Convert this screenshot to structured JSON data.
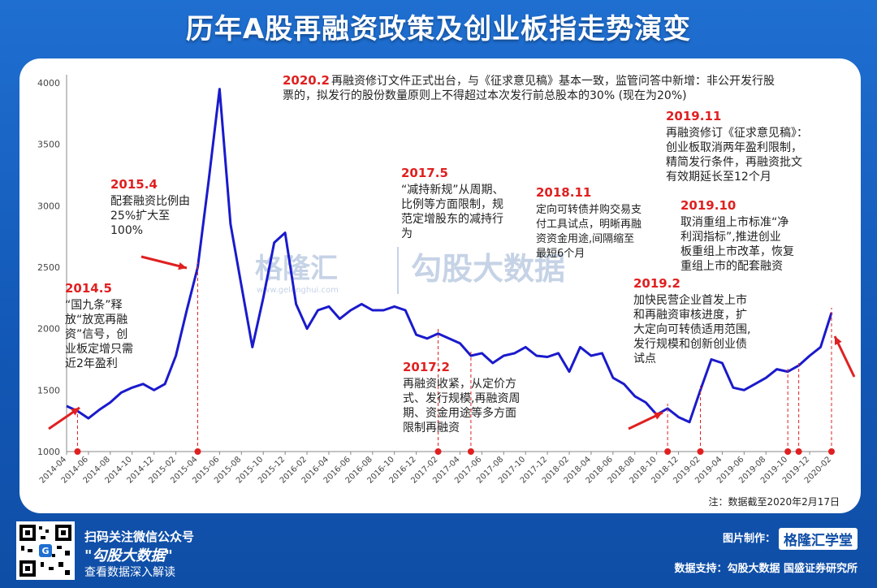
{
  "title": "历年A股再融资政策及创业板指走势演变",
  "watermark": {
    "brand": "格隆汇",
    "site": "www.gelonghui.com",
    "column": "勾股大数据"
  },
  "note": "注：数据截至2020年2月17日",
  "footer": {
    "scan_text": "扫码关注微信公众号",
    "account": "\"勾股大数据\"",
    "read_more": "查看数据深入解读",
    "made_by_label": "图片制作：",
    "made_by": "格隆汇学堂",
    "support": "数据支持：勾股大数据  国盛证券研究所"
  },
  "colors": {
    "series": "#1a1acc",
    "event": "#e02020",
    "text": "#222222",
    "axis": "#888888"
  },
  "chart_data": {
    "type": "line",
    "title": "",
    "xlabel": "",
    "ylabel": "",
    "ylim": [
      1000,
      4000
    ],
    "yticks": [
      1000,
      1500,
      2000,
      2500,
      3000,
      3500,
      4000
    ],
    "grid": false,
    "xticks": [
      "2014-04",
      "2014-06",
      "2014-08",
      "2014-10",
      "2014-12",
      "2015-02",
      "2015-04",
      "2015-06",
      "2015-08",
      "2015-10",
      "2015-12",
      "2016-02",
      "2016-04",
      "2016-06",
      "2016-08",
      "2016-10",
      "2016-12",
      "2017-02",
      "2017-04",
      "2017-06",
      "2017-08",
      "2017-10",
      "2017-12",
      "2018-02",
      "2018-04",
      "2018-06",
      "2018-08",
      "2018-10",
      "2018-12",
      "2019-02",
      "2019-04",
      "2019-06",
      "2019-08",
      "2019-10",
      "2019-12",
      "2020-02"
    ],
    "series": [
      {
        "name": "",
        "points": [
          [
            "2014-04",
            1370
          ],
          [
            "2014-05",
            1330
          ],
          [
            "2014-06",
            1270
          ],
          [
            "2014-07",
            1340
          ],
          [
            "2014-08",
            1400
          ],
          [
            "2014-09",
            1480
          ],
          [
            "2014-10",
            1520
          ],
          [
            "2014-11",
            1550
          ],
          [
            "2014-12",
            1500
          ],
          [
            "2015-01",
            1550
          ],
          [
            "2015-02",
            1780
          ],
          [
            "2015-03",
            2150
          ],
          [
            "2015-04",
            2500
          ],
          [
            "2015-05",
            3200
          ],
          [
            "2015-06",
            3950
          ],
          [
            "2015-07",
            2850
          ],
          [
            "2015-08",
            2350
          ],
          [
            "2015-09",
            1850
          ],
          [
            "2015-10",
            2250
          ],
          [
            "2015-11",
            2700
          ],
          [
            "2015-12",
            2780
          ],
          [
            "2016-01",
            2200
          ],
          [
            "2016-02",
            2000
          ],
          [
            "2016-03",
            2150
          ],
          [
            "2016-04",
            2180
          ],
          [
            "2016-05",
            2080
          ],
          [
            "2016-06",
            2150
          ],
          [
            "2016-07",
            2200
          ],
          [
            "2016-08",
            2150
          ],
          [
            "2016-09",
            2150
          ],
          [
            "2016-10",
            2180
          ],
          [
            "2016-11",
            2150
          ],
          [
            "2016-12",
            1950
          ],
          [
            "2017-01",
            1920
          ],
          [
            "2017-02",
            1960
          ],
          [
            "2017-03",
            1920
          ],
          [
            "2017-04",
            1880
          ],
          [
            "2017-05",
            1780
          ],
          [
            "2017-06",
            1800
          ],
          [
            "2017-07",
            1720
          ],
          [
            "2017-08",
            1780
          ],
          [
            "2017-09",
            1800
          ],
          [
            "2017-10",
            1850
          ],
          [
            "2017-11",
            1780
          ],
          [
            "2017-12",
            1770
          ],
          [
            "2018-01",
            1800
          ],
          [
            "2018-02",
            1650
          ],
          [
            "2018-03",
            1850
          ],
          [
            "2018-04",
            1780
          ],
          [
            "2018-05",
            1800
          ],
          [
            "2018-06",
            1600
          ],
          [
            "2018-07",
            1550
          ],
          [
            "2018-08",
            1450
          ],
          [
            "2018-09",
            1400
          ],
          [
            "2018-10",
            1300
          ],
          [
            "2018-11",
            1350
          ],
          [
            "2018-12",
            1280
          ],
          [
            "2019-01",
            1240
          ],
          [
            "2019-02",
            1500
          ],
          [
            "2019-03",
            1750
          ],
          [
            "2019-04",
            1720
          ],
          [
            "2019-05",
            1520
          ],
          [
            "2019-06",
            1500
          ],
          [
            "2019-07",
            1550
          ],
          [
            "2019-08",
            1600
          ],
          [
            "2019-09",
            1670
          ],
          [
            "2019-10",
            1650
          ],
          [
            "2019-11",
            1700
          ],
          [
            "2019-12",
            1780
          ],
          [
            "2020-01",
            1850
          ],
          [
            "2020-02",
            2130
          ]
        ]
      }
    ],
    "events": [
      {
        "date": "2014-05",
        "label": "2014.5",
        "text": [
          "“国九条”释",
          "放“放宽再融",
          "资”信号，创",
          "业板定增只需",
          "近2年盈利"
        ]
      },
      {
        "date": "2015-04",
        "label": "2015.4",
        "text": [
          "配套融资比例由",
          "25%扩大至",
          "100%"
        ]
      },
      {
        "date": "2017-02",
        "label": "2017.2",
        "text": [
          "再融资收紧，从定价方",
          "式、发行规模,再融资周",
          "期、资金用途等多方面",
          "限制再融资"
        ]
      },
      {
        "date": "2017-05",
        "label": "2017.5",
        "text": [
          "“减持新规”从周期、",
          "比例等方面限制，规",
          "范定增股东的减持行",
          "为"
        ]
      },
      {
        "date": "2018-11",
        "label": "2018.11",
        "text": [
          "定向可转债并购交易支",
          "付工具试点，明晰再融",
          "资资金用途,间隔缩至",
          "最短6个月"
        ]
      },
      {
        "date": "2019-02",
        "label": "2019.2",
        "text": [
          "加快民营企业首发上市",
          "和再融资审核进度，扩",
          "大定向可转债适用范围,",
          "发行规模和创新创业债",
          "试点"
        ]
      },
      {
        "date": "2019-10",
        "label": "2019.10",
        "text": [
          "取消重组上市标准“净",
          "利润指标”,推进创业",
          "板重组上市改革，恢复",
          "重组上市的配套融资"
        ]
      },
      {
        "date": "2019-11",
        "label": "2019.11",
        "text": [
          "再融资修订《征求意见稿》：",
          "创业板取消两年盈利限制，",
          "精简发行条件，再融资批文",
          "有效期延长至12个月"
        ]
      },
      {
        "date": "2020-02",
        "label": "2020.2",
        "text": [
          "再融资修订文件正式出台，与《征求意见稿》基本一致，监管问答中新增：非公开发行股",
          "票的，拟发行的股份数量原则上不得超过本次发行前总股本的30%  (现在为20%)"
        ]
      }
    ]
  }
}
